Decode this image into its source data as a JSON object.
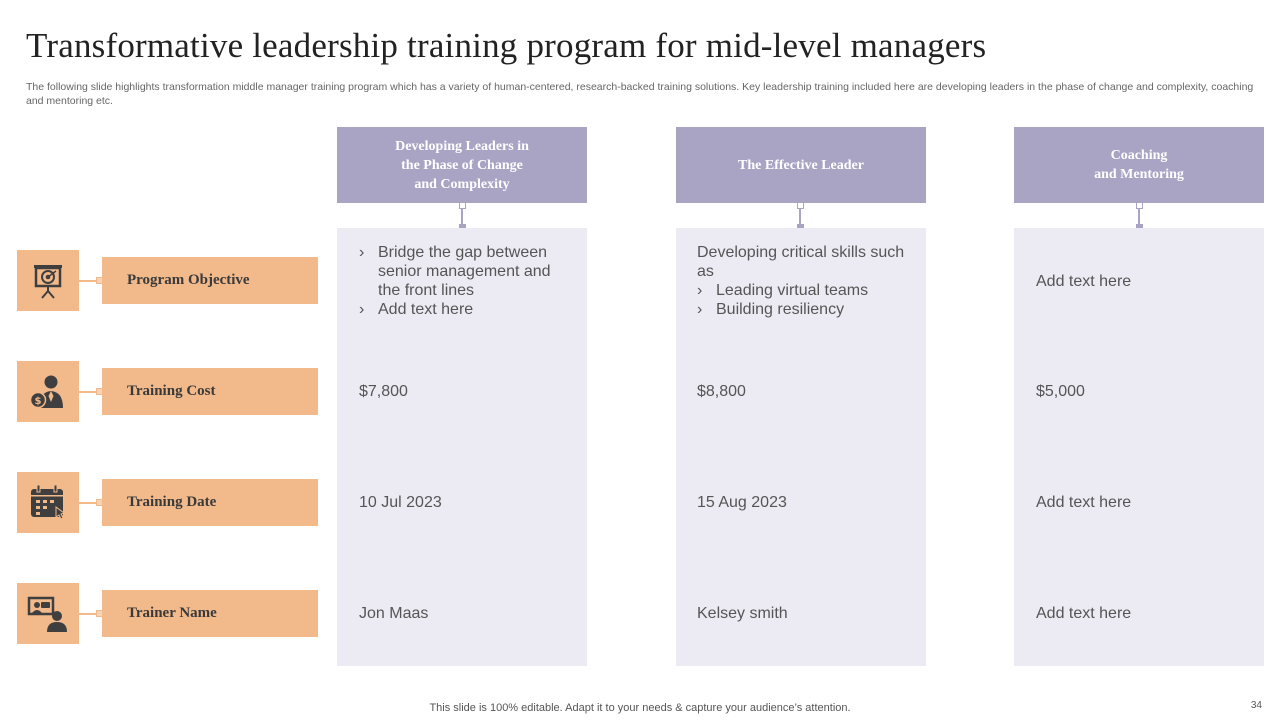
{
  "slide": {
    "title": "Transformative leadership training program for mid-level managers",
    "subtitle": "The following slide highlights transformation middle manager training program which has a variety of human-centered, research-backed training solutions. Key leadership training included here are developing leaders in the phase of change and complexity, coaching and mentoring etc.",
    "footer": "This slide is 100% editable. Adapt it to your needs & capture your audience’s attention.",
    "page_number": "34"
  },
  "columns": [
    {
      "header": "Developing Leaders in\nthe Phase of Change\nand Complexity",
      "objective_bullets": [
        "Bridge the gap between senior management and the front lines",
        "Add text here"
      ],
      "cost": "$7,800",
      "date": "10 Jul 2023",
      "trainer": "Jon Maas"
    },
    {
      "header": "The Effective Leader",
      "objective_text": "Developing critical skills such as",
      "objective_bullets": [
        "Leading virtual teams",
        "Building resiliency"
      ],
      "cost": "$8,800",
      "date": "15 Aug 2023",
      "trainer": "Kelsey smith"
    },
    {
      "header": "Coaching\nand Mentoring",
      "objective_text": "Add text here",
      "cost": "$5,000",
      "date": "Add text here",
      "trainer": "Add text here"
    }
  ],
  "rows": [
    {
      "label": "Program Objective",
      "icon": "target-presentation-icon"
    },
    {
      "label": "Training Cost",
      "icon": "person-dollar-icon"
    },
    {
      "label": "Training Date",
      "icon": "calendar-icon"
    },
    {
      "label": "Trainer Name",
      "icon": "presenter-icon"
    }
  ],
  "colors": {
    "header_purple": "#a9a3c4",
    "body_lavender": "#ecebf3",
    "row_peach": "#f2b98b",
    "icon_dark": "#3f3f3f"
  }
}
